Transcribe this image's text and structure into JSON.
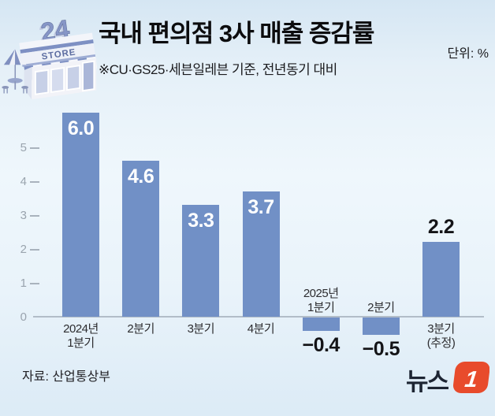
{
  "header": {
    "title": "국내 편의점 3사 매출 증감률",
    "subtitle": "※CU·GS25·세븐일레븐 기준, 전년동기 대비",
    "unit": "단위: %"
  },
  "store_icon": {
    "sign_24": "24",
    "sign_store": "STORE"
  },
  "chart_data": {
    "type": "bar",
    "title": "국내 편의점 3사 매출 증감률",
    "unit": "%",
    "categories": [
      "2024년 1분기",
      "2분기",
      "3분기",
      "4분기",
      "2025년 1분기",
      "2분기",
      "3분기 (추정)"
    ],
    "category_lines": [
      [
        "2024년",
        "1분기"
      ],
      [
        "2분기"
      ],
      [
        "3분기"
      ],
      [
        "4분기"
      ],
      [
        "2025년",
        "1분기"
      ],
      [
        "2분기"
      ],
      [
        "3분기",
        "(추정)"
      ]
    ],
    "values": [
      6.0,
      4.6,
      3.3,
      3.7,
      -0.4,
      -0.5,
      2.2
    ],
    "value_labels": [
      "6.0",
      "4.6",
      "3.3",
      "3.7",
      "−0.4",
      "−0.5",
      "2.2"
    ],
    "value_label_pos": [
      "inside",
      "inside",
      "inside",
      "inside",
      "below",
      "below",
      "above"
    ],
    "category_pos": [
      "below",
      "below",
      "below",
      "below",
      "above",
      "above",
      "below"
    ],
    "yticks": [
      5,
      4,
      3,
      2,
      1,
      0
    ],
    "ylim": [
      -0.9,
      6.2
    ],
    "grid": false,
    "legend": null,
    "xlabel": "",
    "ylabel": ""
  },
  "footer": {
    "source": "자료: 산업통상부",
    "logo": {
      "text": "뉴스",
      "number": "1"
    }
  },
  "colors": {
    "bar": "#7190c6",
    "axis": "#b2bdc8",
    "tick_text": "#9aa4ae",
    "value_inside": "#ffffff",
    "value_outside": "#141417",
    "logo_accent": "#e84b2c",
    "logo_text": "#1d2533"
  }
}
